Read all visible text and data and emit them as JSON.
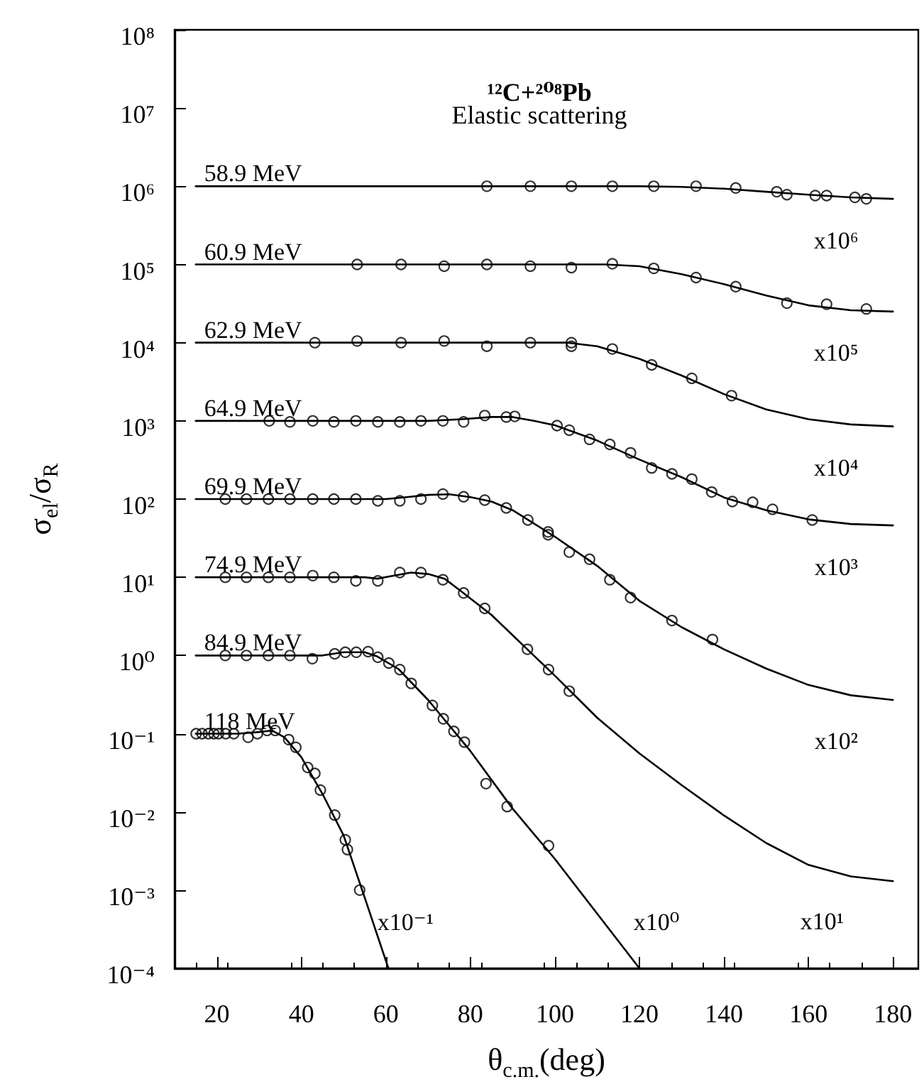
{
  "chart_data": {
    "type": "line",
    "title": "¹²C+²⁰⁸Pb",
    "subtitle": "Elastic scattering",
    "xlabel": "θ$_{c.m.}$(deg)",
    "ylabel": "σ$_{el}$/σ$_{R}$",
    "log": "y",
    "xlim": [
      10,
      186
    ],
    "xticks": [
      20,
      40,
      60,
      80,
      100,
      120,
      140,
      160,
      180
    ],
    "ylim": [
      0.0001,
      100000000.0
    ],
    "yticks": [
      {
        "value": 0.0001,
        "label": "10⁻⁴"
      },
      {
        "value": 0.001,
        "label": "10⁻³"
      },
      {
        "value": 0.01,
        "label": "10⁻²"
      },
      {
        "value": 0.1,
        "label": "10⁻¹"
      },
      {
        "value": 1,
        "label": "10⁰"
      },
      {
        "value": 10,
        "label": "10¹"
      },
      {
        "value": 100,
        "label": "10²"
      },
      {
        "value": 1000.0,
        "label": "10³"
      },
      {
        "value": 10000.0,
        "label": "10⁴"
      },
      {
        "value": 100000.0,
        "label": "10⁵"
      },
      {
        "value": 1000000.0,
        "label": "10⁶"
      },
      {
        "value": 10000000.0,
        "label": "10⁷"
      },
      {
        "value": 100000000.0,
        "label": "10⁸"
      }
    ],
    "series": [
      {
        "name": "58.9 MeV",
        "type": "line",
        "marker": "none",
        "color": "#000000",
        "x": [
          15,
          110,
          120,
          130,
          140,
          150,
          160,
          170,
          180
        ],
        "values": [
          1000000.0,
          1000000.0,
          1000000.0,
          980000.0,
          930000.0,
          850000.0,
          780000.0,
          720000.0,
          690000.0
        ]
      },
      {
        "type": "scatter",
        "marker": "circle",
        "color": "#000000",
        "x": [
          83.9,
          94.2,
          103.9,
          113.6,
          123.4,
          133.4,
          142.8,
          152.5,
          154.9,
          161.6,
          164.3,
          171,
          173.7
        ],
        "values": [
          1000000.0,
          1000000.0,
          1000000.0,
          1000000.0,
          1000000.0,
          1000000.0,
          950000.0,
          850000.0,
          780000.0,
          760000.0,
          760000.0,
          720000.0,
          690000.0
        ]
      },
      {
        "name": "60.9 MeV",
        "type": "line",
        "marker": "none",
        "color": "#000000",
        "x": [
          15,
          112,
          120,
          130,
          140,
          150,
          160,
          170,
          180
        ],
        "values": [
          100000.0,
          100000.0,
          95000.0,
          75000.0,
          56000.0,
          40000.0,
          30000.0,
          26000.0,
          25000.0
        ]
      },
      {
        "type": "scatter",
        "marker": "circle",
        "color": "#000000",
        "x": [
          53.2,
          63.6,
          73.8,
          83.9,
          94.2,
          103.9,
          113.6,
          123.4,
          133.4,
          142.8,
          154.9,
          164.3,
          173.7
        ],
        "values": [
          100000.0,
          100000.0,
          95000.0,
          100000.0,
          95000.0,
          91000.0,
          102000.0,
          89000.0,
          68000.0,
          52000.0,
          32000.0,
          31000.0,
          27000.0
        ]
      },
      {
        "name": "62.9 MeV",
        "type": "line",
        "marker": "none",
        "color": "#000000",
        "x": [
          15,
          103,
          110,
          120,
          130,
          140,
          150,
          160,
          170,
          180
        ],
        "values": [
          10000.0,
          10000.0,
          9000.0,
          6200.0,
          3800.0,
          2200.0,
          1400.0,
          1050.0,
          900.0,
          850.0
        ]
      },
      {
        "type": "scatter",
        "marker": "circle",
        "color": "#000000",
        "x": [
          43.2,
          53.2,
          63.6,
          73.8,
          83.9,
          94.2,
          103.9,
          103.9,
          113.6,
          122.9,
          132.4,
          141.8
        ],
        "values": [
          10000.0,
          10500.0,
          10000.0,
          10500.0,
          9000.0,
          10000.0,
          10000.0,
          9000.0,
          8300.0,
          5200.0,
          3500.0,
          2100.0
        ]
      },
      {
        "name": "64.9 MeV",
        "type": "line",
        "marker": "none",
        "color": "#000000",
        "x": [
          15,
          70,
          78,
          85,
          90,
          95,
          100,
          110,
          120,
          130,
          140,
          150,
          160,
          170,
          180
        ],
        "values": [
          1000.0,
          1000.0,
          1050.0,
          1120.0,
          1120.0,
          1000.0,
          880.0,
          560.0,
          320.0,
          190.0,
          105.0,
          72,
          55,
          48,
          46
        ]
      },
      {
        "type": "scatter",
        "marker": "circle",
        "color": "#000000",
        "x": [
          32.4,
          37.3,
          42.7,
          47.7,
          52.9,
          58.1,
          63.3,
          68.3,
          73.5,
          78.4,
          83.4,
          88.5,
          90.5,
          100.5,
          103.4,
          108.2,
          113,
          117.9,
          122.9,
          127.7,
          132.4,
          137.1,
          142,
          146.8,
          151.5,
          160.9
        ],
        "values": [
          1000.0,
          970.0,
          1000.0,
          970.0,
          1000.0,
          970.0,
          970.0,
          1000.0,
          1000.0,
          970.0,
          1170.0,
          1120.0,
          1140.0,
          870.0,
          760.0,
          580.0,
          500.0,
          390.0,
          250.0,
          210.0,
          180.0,
          123.0,
          93,
          91,
          74,
          54
        ]
      },
      {
        "name": "69.9 MeV",
        "type": "line",
        "marker": "none",
        "color": "#000000",
        "x": [
          15,
          60,
          65,
          70,
          75,
          80,
          85,
          90,
          100,
          110,
          120,
          130,
          140,
          150,
          160,
          170,
          180
        ],
        "values": [
          100,
          100,
          106,
          113,
          115,
          106,
          93,
          72,
          33,
          14,
          5,
          2.3,
          1.2,
          0.68,
          0.42,
          0.31,
          0.27
        ]
      },
      {
        "type": "scatter",
        "marker": "circle",
        "color": "#000000",
        "x": [
          22,
          27,
          32.2,
          37.3,
          42.7,
          47.7,
          52.9,
          58.1,
          63.3,
          68.3,
          73.5,
          78.4,
          83.4,
          88.5,
          93.6,
          98.4,
          98.4,
          103.4,
          108.2,
          113,
          117.9,
          127.7,
          137.3
        ],
        "values": [
          100,
          100,
          100,
          100,
          100,
          100,
          100,
          95,
          95,
          100,
          116,
          107,
          97,
          77,
          54,
          38,
          35,
          21,
          17,
          9.3,
          5.5,
          2.8,
          1.6
        ]
      },
      {
        "name": "74.9 MeV",
        "type": "line",
        "marker": "none",
        "color": "#000000",
        "x": [
          15,
          55,
          58,
          62,
          66,
          70,
          74,
          78,
          85,
          95,
          100,
          110,
          120,
          130,
          140,
          150,
          160,
          170,
          180
        ],
        "values": [
          10,
          10,
          9.6,
          10.5,
          11.5,
          11,
          9.5,
          6.5,
          3.3,
          1.0,
          0.55,
          0.16,
          0.056,
          0.022,
          0.009,
          0.004,
          0.0021,
          0.0015,
          0.0013
        ]
      },
      {
        "type": "scatter",
        "marker": "circle",
        "color": "#000000",
        "x": [
          22,
          27,
          32.2,
          37.3,
          42.7,
          47.7,
          52.9,
          58.1,
          63.3,
          68.3,
          73.5,
          78.4,
          83.4,
          93.5,
          98.5,
          103.4
        ],
        "values": [
          10,
          10,
          10,
          10,
          10.5,
          10,
          9,
          9,
          11.5,
          11.5,
          9.3,
          6.3,
          4,
          1.2,
          0.66,
          0.35
        ]
      },
      {
        "name": "84.9 MeV",
        "type": "line",
        "marker": "none",
        "color": "#000000",
        "x": [
          15,
          45,
          50,
          55,
          58,
          63,
          70,
          80,
          90,
          100,
          110,
          120
        ],
        "values": [
          1,
          1,
          1.1,
          1.1,
          0.97,
          0.67,
          0.27,
          0.06,
          0.011,
          0.0025,
          0.0005,
          0.0001
        ]
      },
      {
        "type": "scatter",
        "marker": "circle",
        "color": "#000000",
        "x": [
          22,
          27,
          32.2,
          37.3,
          42.6,
          47.9,
          50.4,
          53,
          55.8,
          58.1,
          60.7,
          63.3,
          66,
          71,
          73.6,
          76.1,
          78.6,
          83.7,
          88.7,
          98.5
        ],
        "values": [
          1,
          1,
          1,
          1,
          0.91,
          1.05,
          1.1,
          1.1,
          1.12,
          0.95,
          0.8,
          0.66,
          0.44,
          0.23,
          0.155,
          0.107,
          0.078,
          0.023,
          0.0117,
          0.0037
        ]
      },
      {
        "name": "118 MeV",
        "type": "line",
        "marker": "none",
        "color": "#000000",
        "x": [
          15,
          25,
          30,
          33,
          36,
          40,
          45,
          50,
          55,
          60.6
        ],
        "values": [
          0.1,
          0.1,
          0.105,
          0.11,
          0.09,
          0.05,
          0.017,
          0.005,
          0.0008,
          0.0001
        ]
      },
      {
        "type": "scatter",
        "marker": "circle",
        "color": "#000000",
        "x": [
          15.1,
          16.5,
          18,
          19.3,
          20.4,
          22.1,
          24,
          27.4,
          29.6,
          31.9,
          33.8,
          37,
          38.7,
          41.5,
          43.2,
          44.5,
          47.9,
          50.4,
          50.9,
          53.8
        ],
        "values": [
          0.1,
          0.1,
          0.1,
          0.1,
          0.1,
          0.1,
          0.1,
          0.09,
          0.1,
          0.11,
          0.11,
          0.084,
          0.067,
          0.037,
          0.031,
          0.019,
          0.0091,
          0.0044,
          0.0033,
          0.001
        ]
      }
    ],
    "annotations": [
      "x10⁶",
      "x10⁵",
      "x10⁴",
      "x10³",
      "x10²",
      "x10¹",
      "x10⁰",
      "x10⁻¹"
    ]
  }
}
